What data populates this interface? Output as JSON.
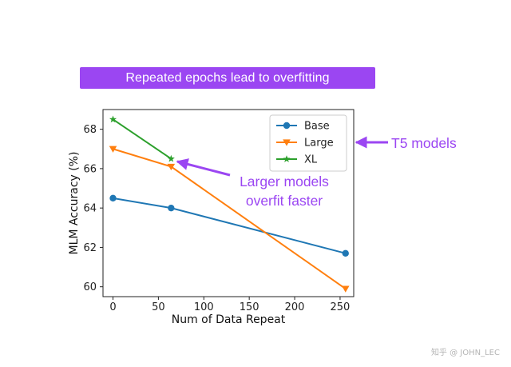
{
  "banner": {
    "text": "Repeated epochs lead to overfitting"
  },
  "chart_data": {
    "type": "line",
    "xlabel": "Num of Data Repeat",
    "ylabel": "MLM Accuracy (%)",
    "xlim": [
      -11,
      265
    ],
    "ylim": [
      59.5,
      69
    ],
    "xticks": [
      0,
      50,
      100,
      150,
      200,
      250
    ],
    "yticks": [
      60,
      62,
      64,
      66,
      68
    ],
    "legend_position": "top-right",
    "series": [
      {
        "name": "Base",
        "color": "#1f77b4",
        "marker": "circle",
        "x": [
          0,
          64,
          256
        ],
        "y": [
          64.5,
          64.0,
          61.7
        ]
      },
      {
        "name": "Large",
        "color": "#ff7f0e",
        "marker": "triangle-down",
        "x": [
          0,
          64,
          256
        ],
        "y": [
          67.0,
          66.1,
          59.9
        ]
      },
      {
        "name": "XL",
        "color": "#2ca02c",
        "marker": "star",
        "x": [
          0,
          64
        ],
        "y": [
          68.5,
          66.5
        ]
      }
    ]
  },
  "annotations": {
    "t5": {
      "text": "T5 models",
      "color": "#9b46f2"
    },
    "overfit": {
      "lines": [
        "Larger models",
        "overfit faster"
      ],
      "color": "#9b46f2"
    }
  },
  "watermark": {
    "text": "知乎 @ JOHN_LEC"
  }
}
